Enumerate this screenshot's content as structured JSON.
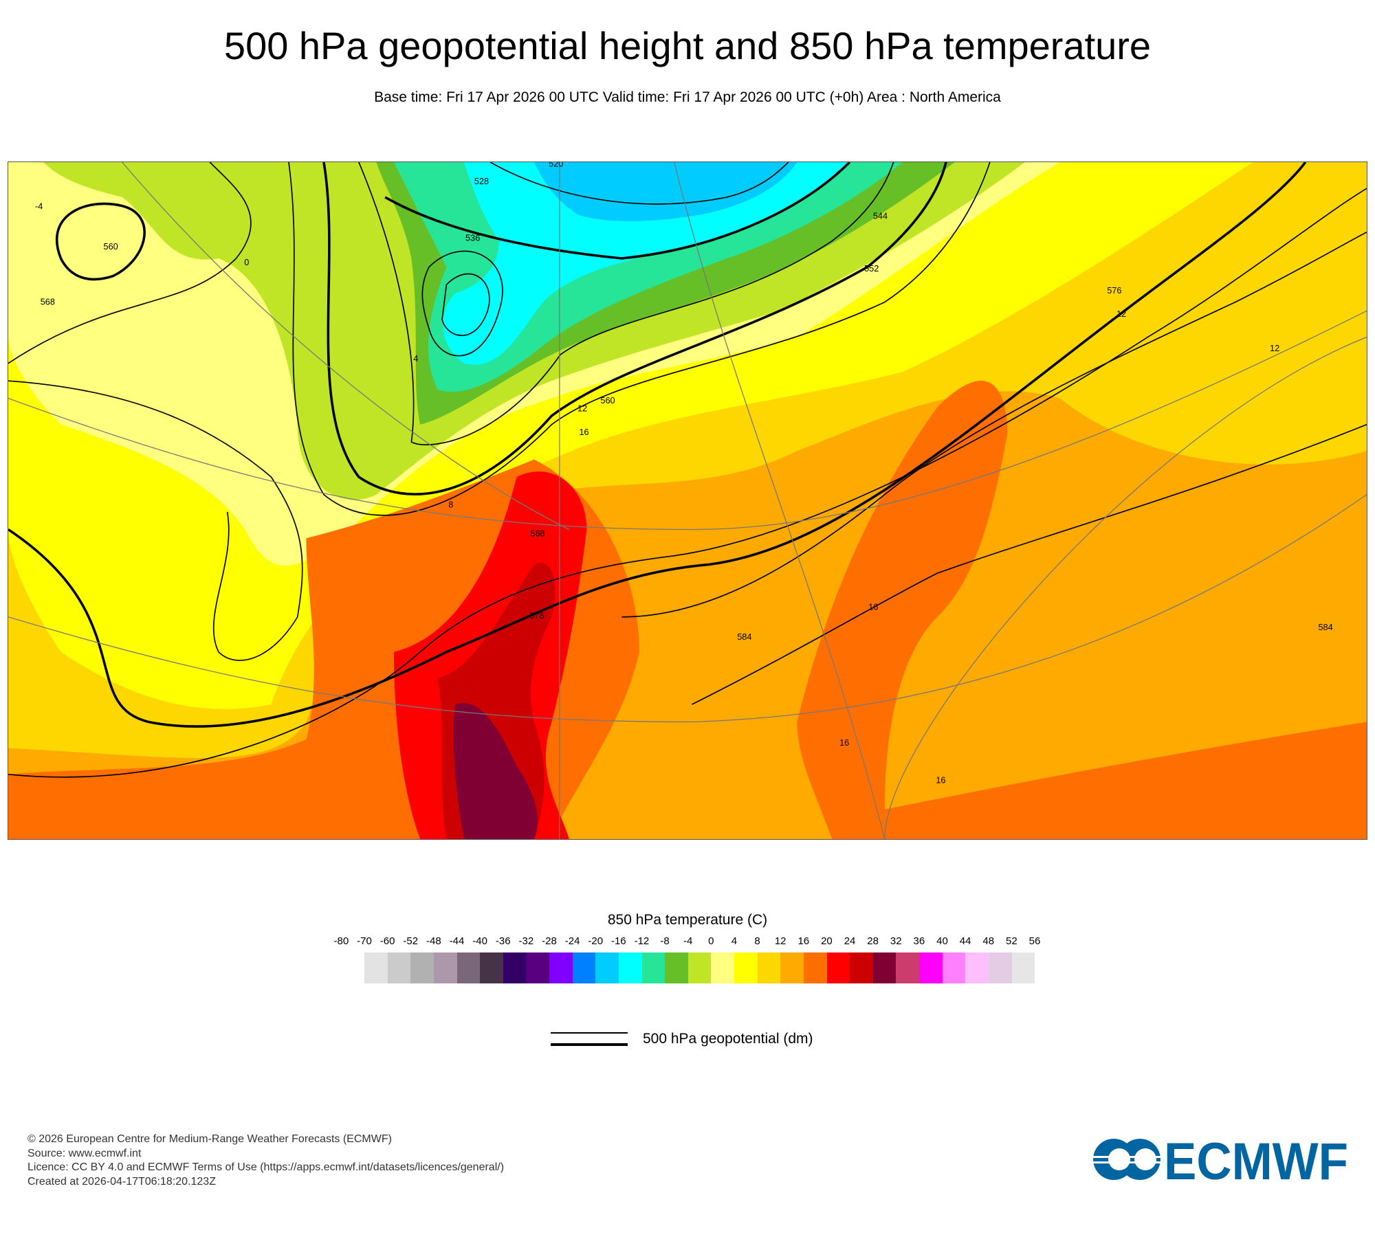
{
  "header": {
    "title": "500 hPa geopotential height and 850 hPa temperature",
    "subtitle": "Base time: Fri 17 Apr 2026 00 UTC Valid time: Fri 17 Apr 2026 00 UTC (+0h) Area : North America"
  },
  "map": {
    "geopotential_labels": [
      "520",
      "528",
      "536",
      "544",
      "552",
      "560",
      "568",
      "576",
      "584",
      "560",
      "568",
      "576",
      "584"
    ],
    "temperature_labels": [
      "-4",
      "0",
      "4",
      "8",
      "12",
      "16",
      "12",
      "16",
      "12",
      "16",
      "16"
    ]
  },
  "colorbar": {
    "title": "850 hPa temperature (C)",
    "ticks": [
      "-80",
      "-70",
      "-60",
      "-52",
      "-48",
      "-44",
      "-40",
      "-36",
      "-32",
      "-28",
      "-24",
      "-20",
      "-16",
      "-12",
      "-8",
      "-4",
      "0",
      "4",
      "8",
      "12",
      "16",
      "20",
      "24",
      "28",
      "32",
      "36",
      "40",
      "44",
      "48",
      "52",
      "56"
    ],
    "colors": [
      "#e3e3e3",
      "#cbcbcb",
      "#b1b1b1",
      "#ad98ab",
      "#7a6779",
      "#473347",
      "#330066",
      "#590080",
      "#8000ff",
      "#0080ff",
      "#00ccff",
      "#00ffff",
      "#26e599",
      "#66bf26",
      "#bfe526",
      "#ffff80",
      "#ffff00",
      "#ffd700",
      "#ffaa00",
      "#ff6e00",
      "#ff0000",
      "#cc0000",
      "#800033",
      "#cc3d6e",
      "#ff00ff",
      "#ff80ff",
      "#ffbfff",
      "#e5cce5",
      "#e6e6e6"
    ]
  },
  "legend": {
    "geopotential_label": "500 hPa geopotential (dm)"
  },
  "footer": {
    "copyright": "© 2026 European Centre for Medium-Range Weather Forecasts (ECMWF)",
    "source": "Source: www.ecmwf.int",
    "licence": "Licence: CC BY 4.0 and ECMWF Terms of Use (https://apps.ecmwf.int/datasets/licences/general/)",
    "created": "Created at 2026-04-17T06:18:20.123Z",
    "logo_text": "ECMWF",
    "logo_color": "#0065a1"
  }
}
